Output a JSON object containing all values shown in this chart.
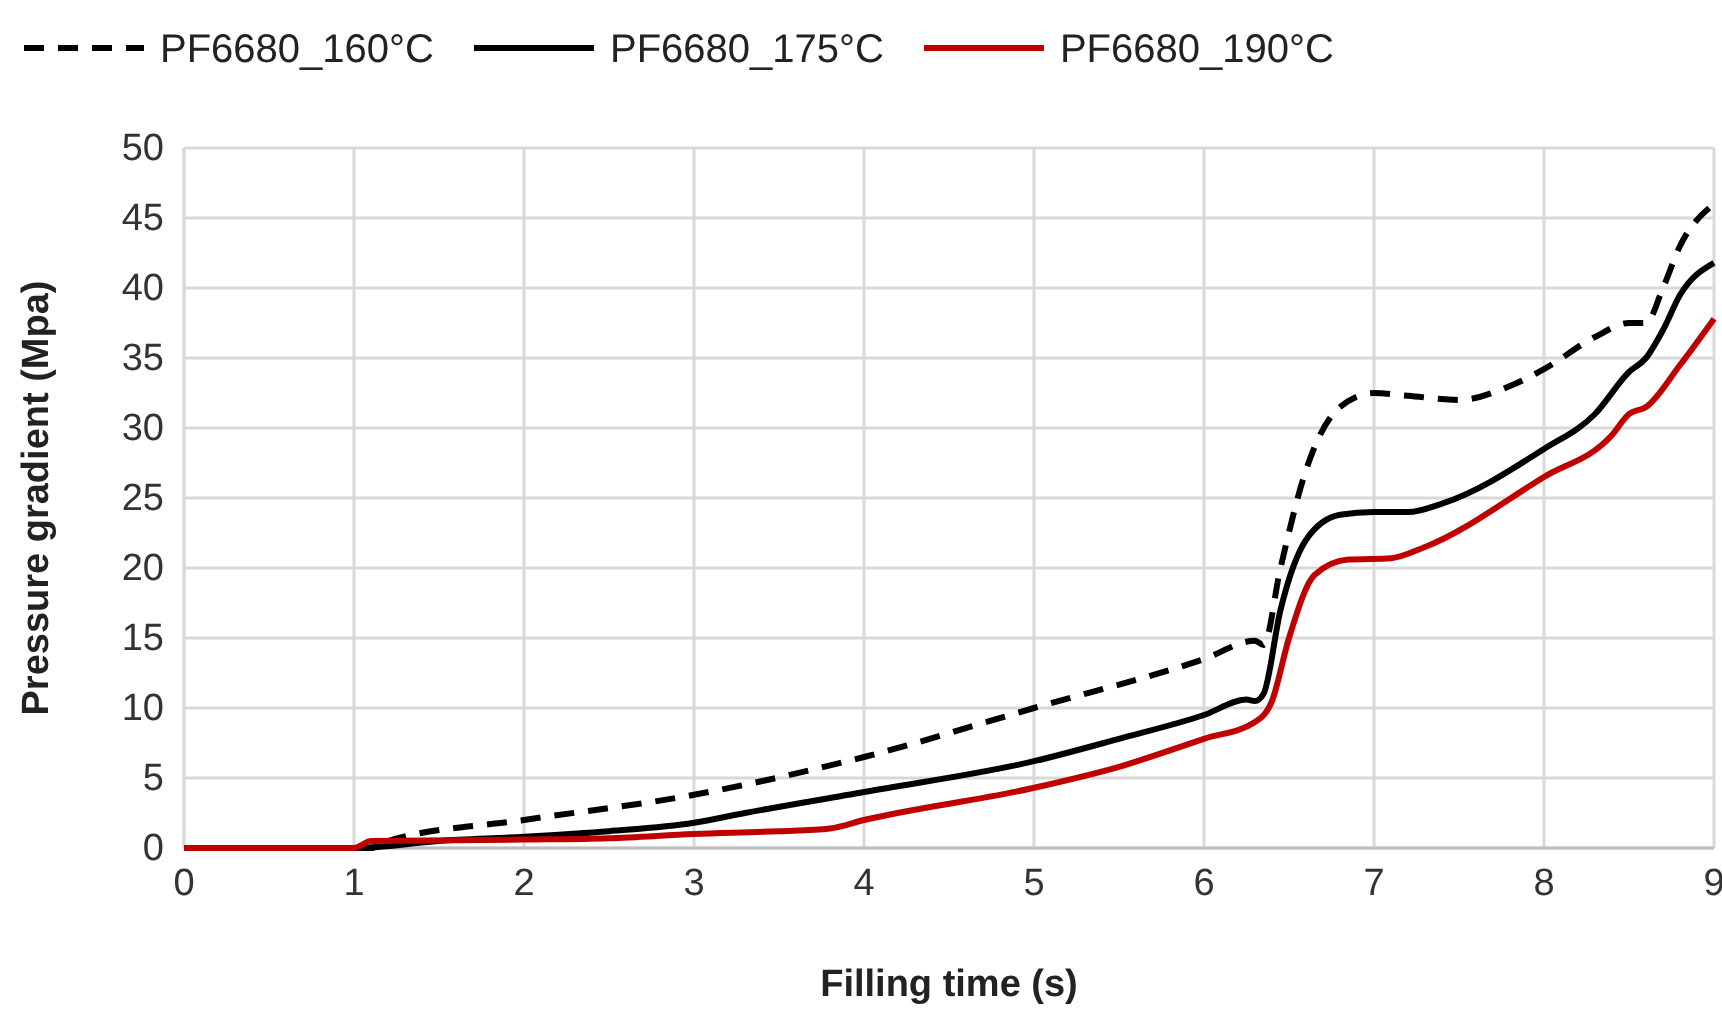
{
  "chart_data": {
    "type": "line",
    "xlabel": "Filling time (s)",
    "ylabel": "Pressure gradient (Mpa)",
    "xlim": [
      0,
      9
    ],
    "xticks": [
      0,
      1,
      2,
      3,
      4,
      5,
      6,
      7,
      8,
      9
    ],
    "ylim": [
      0,
      50
    ],
    "yticks": [
      0,
      5,
      10,
      15,
      20,
      25,
      30,
      35,
      40,
      45,
      50
    ],
    "grid": true,
    "legend": "top",
    "marker": "none",
    "series": [
      {
        "name": "PF6680_160°C",
        "color": "#000000",
        "line_style": "dashed",
        "x": [
          0,
          1.1,
          1.2,
          2,
          3,
          4,
          5,
          6,
          6.3,
          6.35,
          6.45,
          6.6,
          6.8,
          7,
          7.2,
          7.5,
          7.8,
          8,
          8.3,
          8.5,
          8.6,
          8.7,
          8.8,
          9
        ],
        "values": [
          0,
          0,
          0.5,
          2,
          3.8,
          6.5,
          10,
          13.5,
          14.8,
          14.5,
          20,
          27,
          31.5,
          32.5,
          32.3,
          32,
          33,
          34.2,
          36.5,
          37.5,
          37.5,
          40,
          43,
          46
        ]
      },
      {
        "name": "PF6680_175°C",
        "color": "#000000",
        "line_style": "solid",
        "x": [
          0,
          1,
          1.5,
          2,
          2.5,
          3,
          3.3,
          4,
          5,
          5.5,
          6,
          6.25,
          6.3,
          6.35,
          6.45,
          6.6,
          6.8,
          7,
          7.2,
          7.4,
          8,
          8.3,
          8.5,
          8.6,
          8.7,
          8.8,
          9
        ],
        "values": [
          0,
          0,
          0.5,
          0.8,
          1.2,
          1.8,
          2.5,
          4,
          6.2,
          7.8,
          9.5,
          10.6,
          10.5,
          11,
          17,
          22,
          23.8,
          24,
          24,
          24.6,
          28.5,
          31,
          34,
          35,
          37,
          39.5,
          41.8
        ]
      },
      {
        "name": "PF6680_190°C",
        "color": "#c00000",
        "line_style": "solid",
        "x": [
          0,
          1,
          1.1,
          2,
          2.5,
          3,
          3.5,
          3.8,
          4,
          5,
          5.5,
          6,
          6.3,
          6.4,
          6.5,
          6.65,
          6.85,
          7.1,
          7.3,
          8,
          8.4,
          8.5,
          8.6,
          8.8,
          9
        ],
        "values": [
          0,
          0,
          0.5,
          0.6,
          0.7,
          1,
          1.2,
          1.4,
          2,
          4.3,
          5.8,
          7.8,
          9,
          10.5,
          15,
          19.5,
          20.6,
          20.7,
          21.5,
          26.5,
          29.5,
          31,
          31.5,
          34.5,
          37.8
        ]
      }
    ]
  }
}
